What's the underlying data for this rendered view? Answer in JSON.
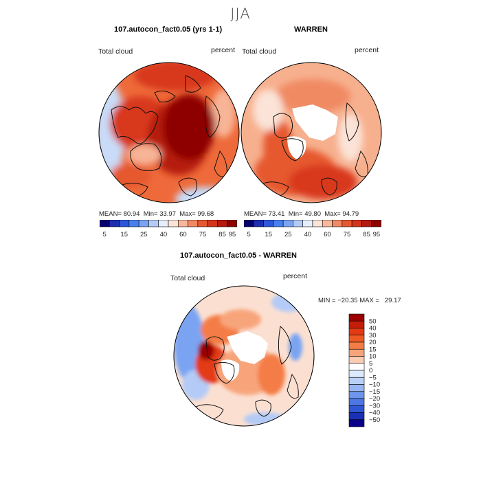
{
  "season": "JJA",
  "panels": [
    {
      "title": "107.autocon_fact0.05 (yrs 1-1)",
      "field_label": "Total cloud",
      "unit_label": "percent",
      "stats": {
        "mean_label": "MEAN=",
        "mean": "80.94",
        "min_label": "Min=",
        "min": "33.97",
        "max_label": "Max=",
        "max": "99.68"
      }
    },
    {
      "title": "WARREN",
      "field_label": "Total cloud",
      "unit_label": "percent",
      "stats": {
        "mean_label": "MEAN=",
        "mean": "73.41",
        "min_label": "Min=",
        "min": "49.80",
        "max_label": "Max=",
        "max": "94.79"
      }
    }
  ],
  "abs_colorbar": {
    "colors": [
      "#08006e",
      "#1d2fb0",
      "#2e57d8",
      "#4a80ee",
      "#7aa4f2",
      "#b3cbf6",
      "#e6eefc",
      "#fbe3d7",
      "#f7b89c",
      "#f08a64",
      "#e6582f",
      "#d4361c",
      "#b51a10",
      "#8e0000"
    ],
    "ticks": [
      "5",
      "15",
      "25",
      "40",
      "60",
      "75",
      "85",
      "95"
    ]
  },
  "diff": {
    "title": "107.autocon_fact0.05 - WARREN",
    "field_label": "Total cloud",
    "unit_label": "percent",
    "minmax": "MIN = −20.35 MAX =   29.17"
  },
  "diff_colorbar": {
    "colors": [
      "#9a0000",
      "#c61d0b",
      "#e23a12",
      "#ee5a24",
      "#f47d46",
      "#f8a47a",
      "#fbccb2",
      "#ffffff",
      "#dce8fb",
      "#b9cff6",
      "#96b5f1",
      "#6f96ec",
      "#4d77e4",
      "#2f56d4",
      "#1a30b4",
      "#08008a"
    ],
    "ticks": [
      "50",
      "40",
      "30",
      "20",
      "15",
      "10",
      "5",
      "0",
      "−5",
      "−10",
      "−15",
      "−20",
      "−30",
      "−40",
      "−50"
    ]
  }
}
